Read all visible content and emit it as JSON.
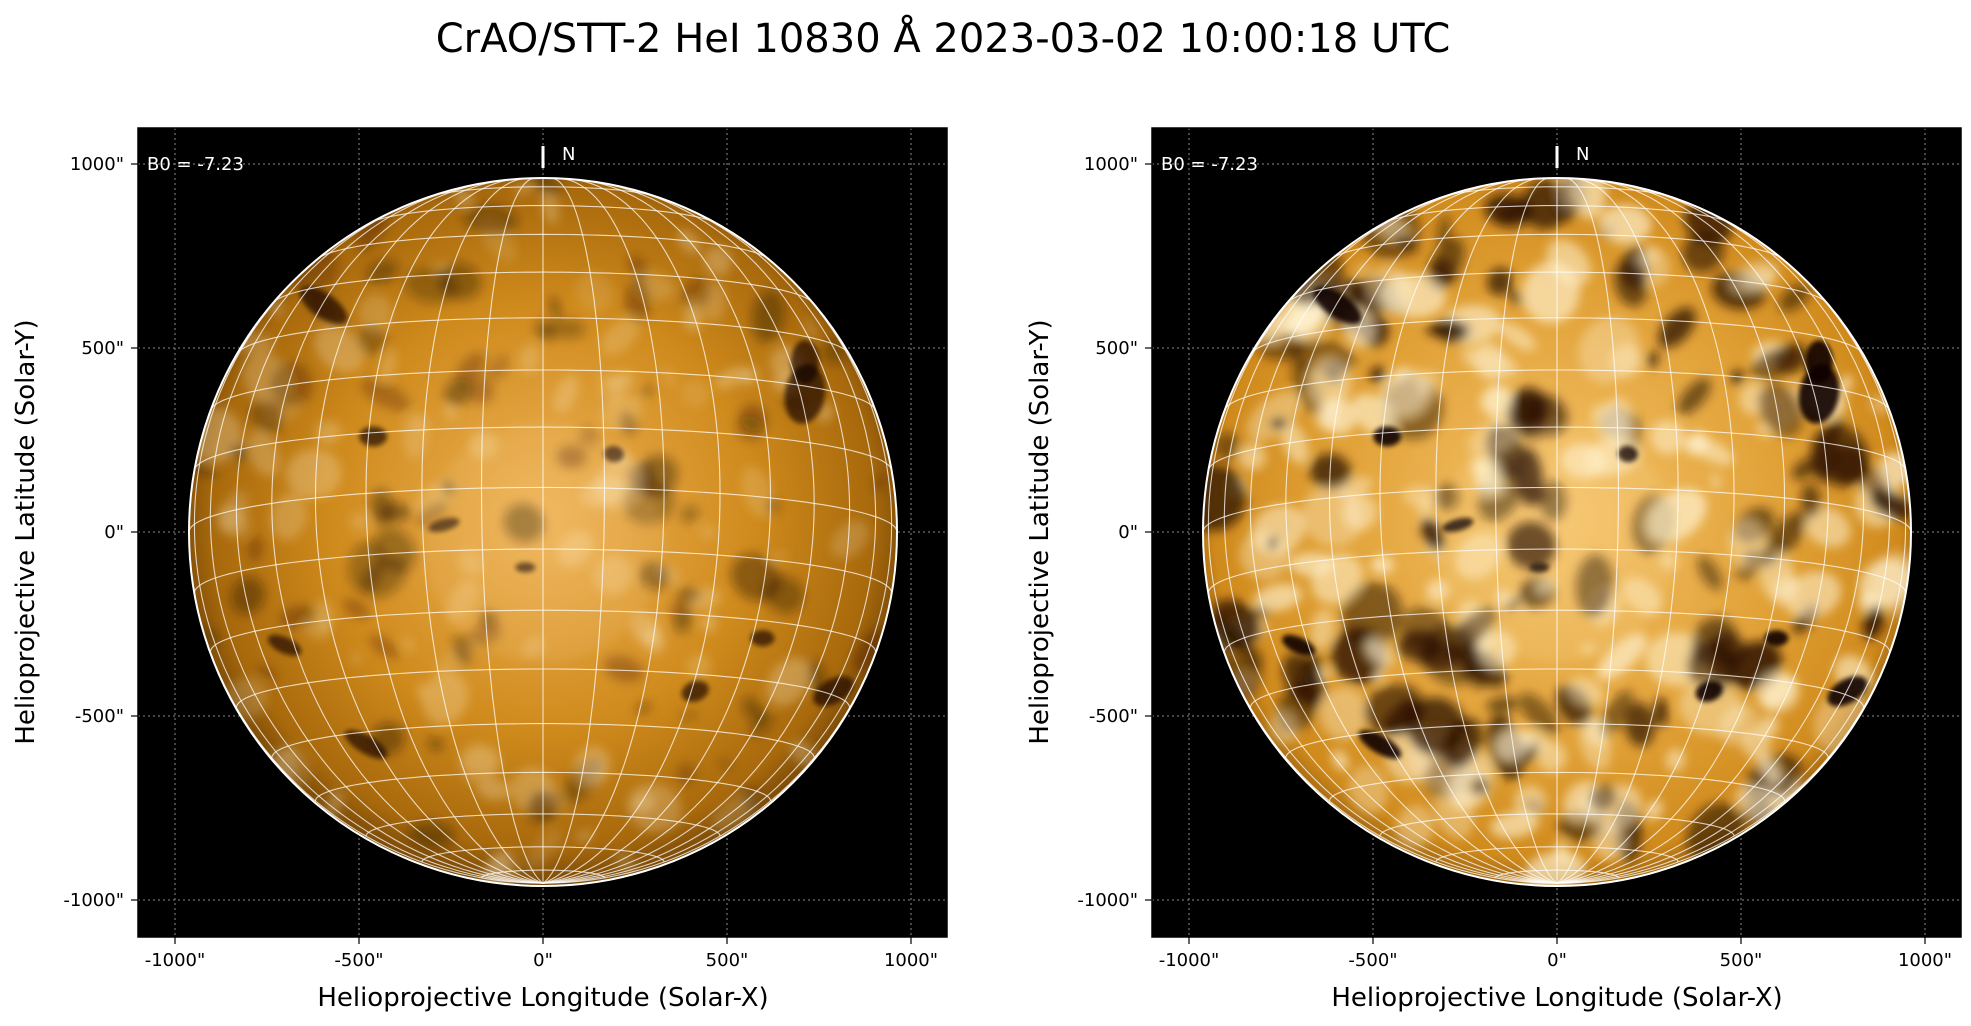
{
  "title": "CrAO/STT-2 HeI 10830 Å 2023-03-02 10:00:18 UTC",
  "colors": {
    "background": "#000000",
    "disk_base": "#c67e10",
    "disk_light": "#f2c070",
    "disk_dark": "#1a0a00",
    "grid": "#ffffff"
  },
  "panels": [
    {
      "name": "left-panel",
      "b0_text": "B0 = -7.23",
      "north_label": "N",
      "xlabel": "Helioprojective Longitude (Solar-X)",
      "ylabel": "Helioprojective Latitude (Solar-Y)",
      "x_ticks": [
        "-1000\"",
        "-500\"",
        "0\"",
        "500\"",
        "1000\""
      ],
      "y_ticks": [
        "1000\"",
        "500\"",
        "0\"",
        "-500\"",
        "-1000\""
      ],
      "contrast": "low"
    },
    {
      "name": "right-panel",
      "b0_text": "B0 = -7.23",
      "north_label": "N",
      "xlabel": "Helioprojective Longitude (Solar-X)",
      "ylabel": "Helioprojective Latitude (Solar-Y)",
      "x_ticks": [
        "-1000\"",
        "-500\"",
        "0\"",
        "500\"",
        "1000\""
      ],
      "y_ticks": [
        "1000\"",
        "500\"",
        "0\"",
        "-500\"",
        "-1000\""
      ],
      "contrast": "high"
    }
  ]
}
